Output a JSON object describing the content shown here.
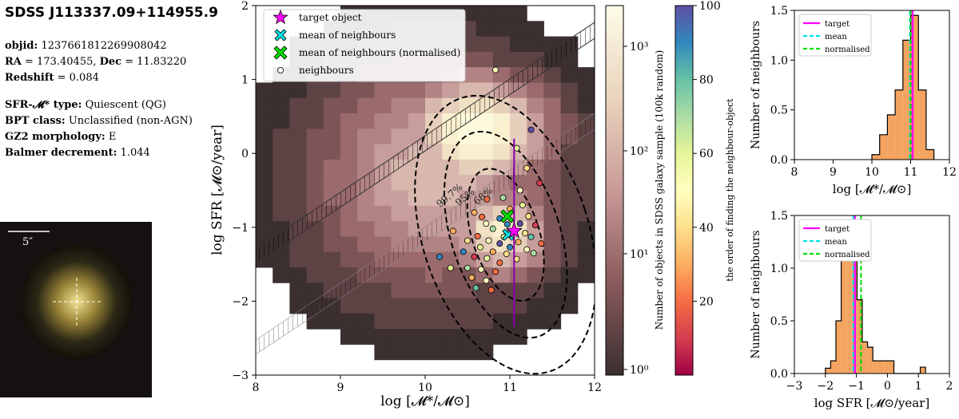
{
  "object": {
    "title": "SDSS J113337.09+114955.9",
    "objid_label": "objid:",
    "objid": "1237661812269908042",
    "ra_label": "RA",
    "ra": "= 173.40455",
    "dec_label": "Dec",
    "dec": "= 11.83220",
    "redshift_label": "Redshift",
    "redshift": "= 0.084",
    "sfr_type_label": "SFR-𝓜* type:",
    "sfr_type": "Quiescent (QG)",
    "bpt_label": "BPT class:",
    "bpt": "Unclassified (non-AGN)",
    "gz2_label": "GZ2 morphology:",
    "gz2": "E",
    "balmer_label": "Balmer decrement:",
    "balmer": "1.044",
    "scale_label": "5″"
  },
  "colors": {
    "target": "#ff00ff",
    "mean": "#00e5e5",
    "normalised": "#00dd00",
    "hist_fill": "#f4a460"
  },
  "chart_data": [
    {
      "type": "scatter",
      "title": "",
      "xlabel": "log [𝓜*/𝓜⊙]",
      "ylabel": "log SFR [𝓜⊙/year]",
      "xlim": [
        8,
        12
      ],
      "ylim": [
        -3,
        2
      ],
      "xticks": [
        8,
        9,
        10,
        11,
        12
      ],
      "yticks": [
        -3,
        -2,
        -1,
        0,
        1,
        2
      ],
      "legend": [
        "target object",
        "mean of neighbours",
        "mean of neighbours (normalised)",
        "neighbours"
      ],
      "target": {
        "x": 11.05,
        "y": -1.05,
        "yerr_low": -2.35,
        "yerr_high": 0.2
      },
      "mean": {
        "x": 10.98,
        "y": -1.1
      },
      "normalised_mean": {
        "x": 10.97,
        "y": -0.85
      },
      "contour_labels": [
        "99.7%",
        "95%",
        "68%"
      ],
      "colorbar1": {
        "label": "Number of objects in SDSS galaxy sample (100k random)",
        "ticks": [
          "10⁰",
          "10¹",
          "10²",
          "10³"
        ]
      },
      "colorbar2": {
        "label": "the order of finding the neighbour-object",
        "ticks": [
          20,
          40,
          60,
          80,
          100
        ]
      },
      "neighbours": [
        {
          "x": 10.83,
          "y": 1.13,
          "c": 50
        },
        {
          "x": 11.25,
          "y": 0.32,
          "c": 95
        },
        {
          "x": 11.08,
          "y": 0.07,
          "c": 55
        },
        {
          "x": 11.2,
          "y": -0.2,
          "c": 40
        },
        {
          "x": 11.35,
          "y": -0.4,
          "c": 10
        },
        {
          "x": 11.12,
          "y": -0.5,
          "c": 45
        },
        {
          "x": 10.73,
          "y": -0.62,
          "c": 20
        },
        {
          "x": 10.92,
          "y": -0.6,
          "c": 70
        },
        {
          "x": 11.15,
          "y": -0.7,
          "c": 60
        },
        {
          "x": 10.58,
          "y": -0.8,
          "c": 30
        },
        {
          "x": 10.67,
          "y": -0.86,
          "c": 15
        },
        {
          "x": 10.88,
          "y": -0.88,
          "c": 85
        },
        {
          "x": 11.22,
          "y": -0.85,
          "c": 35
        },
        {
          "x": 10.72,
          "y": -0.95,
          "c": 50
        },
        {
          "x": 10.97,
          "y": -0.96,
          "c": 90
        },
        {
          "x": 11.3,
          "y": -0.97,
          "c": 10
        },
        {
          "x": 10.33,
          "y": -1.05,
          "c": 25
        },
        {
          "x": 10.8,
          "y": -1.02,
          "c": 65
        },
        {
          "x": 11.0,
          "y": -1.06,
          "c": 75
        },
        {
          "x": 11.18,
          "y": -1.08,
          "c": 40
        },
        {
          "x": 10.62,
          "y": -1.12,
          "c": 20
        },
        {
          "x": 10.93,
          "y": -1.13,
          "c": 55
        },
        {
          "x": 11.25,
          "y": -1.13,
          "c": 80
        },
        {
          "x": 10.5,
          "y": -1.18,
          "c": 35
        },
        {
          "x": 10.75,
          "y": -1.18,
          "c": 45
        },
        {
          "x": 10.88,
          "y": -1.22,
          "c": 95
        },
        {
          "x": 11.1,
          "y": -1.2,
          "c": 30
        },
        {
          "x": 11.37,
          "y": -1.22,
          "c": 15
        },
        {
          "x": 10.65,
          "y": -1.27,
          "c": 60
        },
        {
          "x": 11.0,
          "y": -1.27,
          "c": 85
        },
        {
          "x": 11.2,
          "y": -1.3,
          "c": 50
        },
        {
          "x": 10.45,
          "y": -1.33,
          "c": 90
        },
        {
          "x": 10.8,
          "y": -1.33,
          "c": 25
        },
        {
          "x": 10.96,
          "y": -1.36,
          "c": 40
        },
        {
          "x": 11.28,
          "y": -1.35,
          "c": 70
        },
        {
          "x": 10.58,
          "y": -1.4,
          "c": 10
        },
        {
          "x": 10.73,
          "y": -1.42,
          "c": 55
        },
        {
          "x": 11.08,
          "y": -1.43,
          "c": 35
        },
        {
          "x": 10.88,
          "y": -1.48,
          "c": 20
        },
        {
          "x": 10.5,
          "y": -1.55,
          "c": 65
        },
        {
          "x": 10.66,
          "y": -1.57,
          "c": 45
        },
        {
          "x": 10.83,
          "y": -1.6,
          "c": 15
        },
        {
          "x": 10.55,
          "y": -1.68,
          "c": 30
        },
        {
          "x": 10.72,
          "y": -1.72,
          "c": 50
        },
        {
          "x": 10.6,
          "y": -1.82,
          "c": 75
        },
        {
          "x": 10.78,
          "y": -1.85,
          "c": 20
        },
        {
          "x": 10.17,
          "y": -1.4,
          "c": 85
        },
        {
          "x": 10.3,
          "y": -1.55,
          "c": 60
        },
        {
          "x": 11.0,
          "y": -0.75,
          "c": 30
        },
        {
          "x": 11.12,
          "y": -0.95,
          "c": 98
        }
      ]
    },
    {
      "type": "bar",
      "title": "",
      "xlabel": "log [𝓜*/𝓜⊙]",
      "ylabel": "Number of neighbours",
      "xlim": [
        8,
        12
      ],
      "ylim": [
        0,
        1.5
      ],
      "xticks": [
        8,
        9,
        10,
        11,
        12
      ],
      "yticks": [
        0.0,
        0.5,
        1.0,
        1.5
      ],
      "legend": [
        "target",
        "mean",
        "normalised"
      ],
      "bin_edges": [
        10.0,
        10.2,
        10.4,
        10.6,
        10.8,
        11.0,
        11.2,
        11.4,
        11.6
      ],
      "values": [
        0.05,
        0.25,
        0.45,
        0.7,
        1.2,
        1.45,
        0.7,
        0.1
      ],
      "lines": {
        "target": 11.05,
        "mean": 10.98,
        "normalised": 11.0
      }
    },
    {
      "type": "bar",
      "title": "",
      "xlabel": "log SFR [𝓜⊙/year]",
      "ylabel": "Number of neighbours",
      "xlim": [
        -3,
        2
      ],
      "ylim": [
        0,
        1.5
      ],
      "xticks": [
        -3,
        -2,
        -1,
        0,
        1,
        2
      ],
      "yticks": [
        0.0,
        0.5,
        1.0,
        1.5
      ],
      "legend": [
        "target",
        "mean",
        "normalised"
      ],
      "bin_edges": [
        -2.0,
        -1.83,
        -1.66,
        -1.49,
        -1.32,
        -1.15,
        -0.98,
        -0.81,
        -0.64,
        -0.47,
        -0.3,
        -0.13,
        0.04,
        0.21,
        0.38,
        0.55,
        0.72,
        0.89,
        1.06,
        1.23
      ],
      "values": [
        0.05,
        0.12,
        0.5,
        1.45,
        1.25,
        1.3,
        0.7,
        0.3,
        0.25,
        0.12,
        0.12,
        0.12,
        0.12,
        0.0,
        0.0,
        0.0,
        0.0,
        0.0,
        0.06
      ],
      "lines": {
        "target": -1.05,
        "mean": -1.1,
        "normalised": -0.85
      }
    }
  ]
}
